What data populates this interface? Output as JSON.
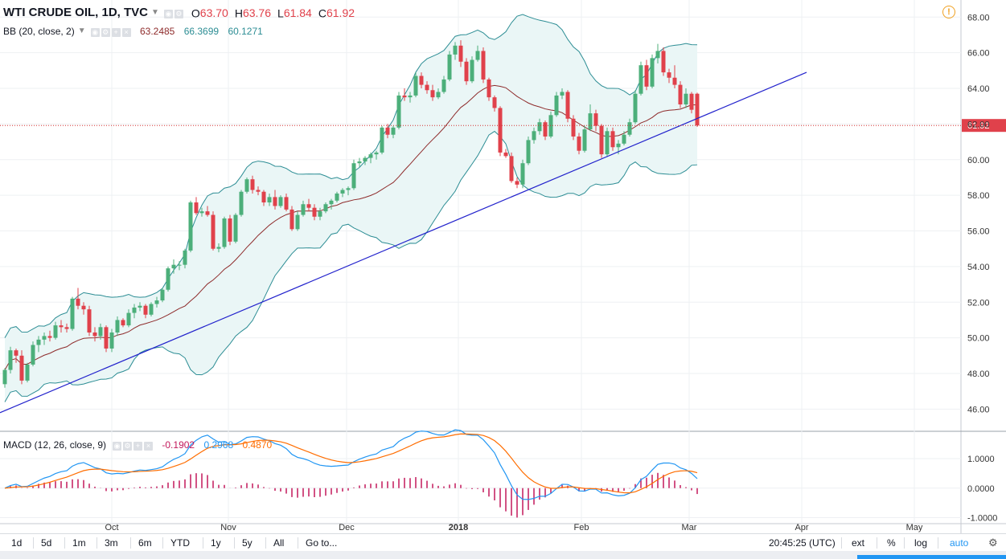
{
  "legend": {
    "symbol": "WTI CRUDE OIL, 1D, TVC",
    "ohlc": [
      {
        "k": "O",
        "v": "63.70"
      },
      {
        "k": "H",
        "v": "63.76"
      },
      {
        "k": "L",
        "v": "61.84"
      },
      {
        "k": "C",
        "v": "61.92"
      }
    ]
  },
  "bb": {
    "label": "BB (20, close, 2)",
    "basis": "63.2485",
    "upper": "66.3699",
    "lower": "60.1271"
  },
  "macd_legend": {
    "label": "MACD (12, 26, close, 9)",
    "histogram": "-0.1902",
    "macd": "0.2968",
    "signal": "0.4870"
  },
  "colors": {
    "up": "#4caf7a",
    "down": "#e0414b",
    "band": "#2c8d94",
    "band_fill": "#eaf6f6",
    "basis": "#8e2b2b",
    "trendline": "#2222cc",
    "macd": "#2196f3",
    "signal": "#ff6d00",
    "hist": "#c2185b",
    "price_line": "#d32f2f"
  },
  "price_badge": "61.92",
  "toolbar": {
    "ranges": [
      "1d",
      "5d",
      "1m",
      "3m",
      "6m",
      "YTD",
      "1y",
      "5y",
      "All"
    ],
    "goto": "Go to...",
    "time": "20:45:25 (UTC)",
    "ext": "ext",
    "percent": "%",
    "log": "log",
    "auto": "auto"
  },
  "chart_data": {
    "type": "candlestick",
    "x_ticks": [
      "Oct",
      "Nov",
      "Dec",
      "2018",
      "Feb",
      "Mar",
      "Apr",
      "May"
    ],
    "y_ticks": [
      "68.00",
      "66.00",
      "64.00",
      "62.00",
      "60.00",
      "58.00",
      "56.00",
      "54.00",
      "52.00",
      "50.00",
      "48.00",
      "46.00"
    ],
    "ylim": [
      44.8,
      68.6
    ],
    "macd_ticks": [
      "1.0000",
      "0.0000",
      "-1.0000"
    ],
    "macd_ylim": [
      -1.15,
      1.9
    ],
    "candles": [
      [
        47.4,
        48.3,
        47.2,
        48.2
      ],
      [
        48.2,
        49.5,
        48.0,
        49.3
      ],
      [
        49.3,
        49.4,
        48.6,
        49.0
      ],
      [
        49.0,
        49.3,
        47.4,
        47.6
      ],
      [
        47.6,
        48.6,
        47.5,
        48.5
      ],
      [
        48.5,
        49.8,
        48.4,
        49.6
      ],
      [
        49.6,
        50.1,
        49.2,
        49.9
      ],
      [
        49.9,
        50.3,
        49.6,
        50.1
      ],
      [
        50.1,
        50.4,
        49.8,
        50.0
      ],
      [
        50.0,
        50.9,
        49.9,
        50.7
      ],
      [
        50.7,
        51.0,
        50.3,
        50.6
      ],
      [
        50.6,
        50.8,
        50.3,
        50.5
      ],
      [
        50.5,
        52.3,
        50.4,
        52.2
      ],
      [
        52.2,
        52.8,
        51.6,
        51.8
      ],
      [
        51.8,
        52.0,
        51.3,
        51.6
      ],
      [
        51.6,
        51.8,
        50.1,
        50.3
      ],
      [
        50.3,
        50.6,
        49.8,
        50.1
      ],
      [
        50.1,
        50.8,
        49.9,
        50.6
      ],
      [
        50.6,
        50.7,
        49.2,
        49.4
      ],
      [
        49.4,
        50.5,
        49.2,
        50.3
      ],
      [
        50.3,
        51.2,
        50.1,
        51.0
      ],
      [
        51.0,
        51.1,
        50.6,
        50.7
      ],
      [
        50.7,
        51.6,
        50.6,
        51.4
      ],
      [
        51.4,
        51.9,
        51.1,
        51.7
      ],
      [
        51.7,
        52.0,
        51.5,
        51.8
      ],
      [
        51.8,
        51.9,
        51.1,
        51.3
      ],
      [
        51.3,
        52.0,
        51.2,
        51.9
      ],
      [
        51.9,
        52.3,
        51.7,
        52.1
      ],
      [
        52.1,
        52.8,
        52.0,
        52.7
      ],
      [
        52.7,
        54.0,
        52.6,
        53.9
      ],
      [
        53.9,
        54.4,
        53.6,
        54.1
      ],
      [
        54.1,
        54.3,
        53.8,
        54.1
      ],
      [
        54.1,
        55.0,
        53.9,
        54.9
      ],
      [
        54.9,
        57.7,
        54.8,
        57.6
      ],
      [
        57.6,
        57.9,
        56.9,
        57.0
      ],
      [
        57.0,
        57.3,
        56.8,
        57.1
      ],
      [
        57.1,
        57.4,
        56.8,
        56.9
      ],
      [
        56.9,
        57.1,
        54.9,
        55.0
      ],
      [
        55.0,
        55.3,
        54.8,
        55.1
      ],
      [
        55.1,
        56.8,
        55.0,
        56.7
      ],
      [
        56.7,
        56.9,
        55.2,
        55.4
      ],
      [
        55.4,
        57.0,
        55.3,
        56.9
      ],
      [
        56.9,
        58.3,
        56.8,
        58.2
      ],
      [
        58.2,
        59.0,
        58.1,
        58.9
      ],
      [
        58.9,
        59.1,
        58.1,
        58.3
      ],
      [
        58.3,
        58.5,
        58.0,
        58.2
      ],
      [
        58.2,
        58.3,
        57.4,
        57.6
      ],
      [
        57.6,
        58.1,
        57.4,
        57.9
      ],
      [
        57.9,
        58.3,
        57.2,
        57.4
      ],
      [
        57.4,
        58.0,
        57.3,
        57.9
      ],
      [
        57.9,
        58.1,
        57.1,
        57.2
      ],
      [
        57.2,
        57.4,
        56.0,
        56.1
      ],
      [
        56.1,
        57.1,
        56.0,
        56.9
      ],
      [
        56.9,
        57.7,
        56.8,
        57.5
      ],
      [
        57.5,
        57.8,
        57.1,
        57.3
      ],
      [
        57.3,
        57.5,
        56.6,
        56.8
      ],
      [
        56.8,
        57.3,
        56.6,
        57.1
      ],
      [
        57.1,
        57.6,
        57.0,
        57.5
      ],
      [
        57.5,
        57.8,
        57.2,
        57.7
      ],
      [
        57.7,
        58.2,
        57.6,
        58.1
      ],
      [
        58.1,
        58.4,
        57.9,
        58.3
      ],
      [
        58.3,
        58.5,
        58.0,
        58.4
      ],
      [
        58.4,
        60.0,
        58.3,
        59.8
      ],
      [
        59.8,
        60.1,
        59.6,
        59.9
      ],
      [
        59.9,
        60.2,
        59.7,
        60.1
      ],
      [
        60.1,
        60.4,
        59.8,
        60.3
      ],
      [
        60.3,
        60.5,
        60.0,
        60.4
      ],
      [
        60.4,
        61.9,
        60.3,
        61.8
      ],
      [
        61.8,
        62.0,
        61.2,
        61.4
      ],
      [
        61.4,
        61.9,
        61.2,
        61.8
      ],
      [
        61.8,
        63.8,
        61.7,
        63.6
      ],
      [
        63.6,
        64.0,
        63.3,
        63.5
      ],
      [
        63.5,
        63.8,
        63.2,
        63.6
      ],
      [
        63.6,
        64.9,
        63.5,
        64.7
      ],
      [
        64.7,
        64.9,
        64.0,
        64.2
      ],
      [
        64.2,
        64.4,
        63.7,
        63.9
      ],
      [
        63.9,
        64.2,
        63.3,
        63.5
      ],
      [
        63.5,
        64.0,
        63.4,
        63.8
      ],
      [
        63.8,
        64.7,
        63.7,
        64.5
      ],
      [
        64.5,
        66.1,
        64.4,
        65.9
      ],
      [
        65.9,
        66.6,
        65.6,
        66.4
      ],
      [
        66.4,
        66.7,
        65.2,
        65.5
      ],
      [
        65.5,
        65.7,
        64.2,
        64.4
      ],
      [
        64.4,
        65.8,
        64.3,
        65.6
      ],
      [
        65.6,
        66.4,
        65.5,
        66.1
      ],
      [
        66.1,
        66.3,
        64.3,
        64.5
      ],
      [
        64.5,
        64.6,
        63.3,
        63.5
      ],
      [
        63.5,
        63.6,
        62.7,
        62.9
      ],
      [
        62.9,
        63.0,
        60.2,
        60.4
      ],
      [
        60.4,
        60.6,
        60.1,
        60.2
      ],
      [
        60.2,
        60.4,
        58.7,
        58.8
      ],
      [
        58.8,
        59.0,
        58.4,
        58.6
      ],
      [
        58.6,
        60.0,
        58.4,
        59.8
      ],
      [
        59.8,
        61.3,
        59.7,
        61.1
      ],
      [
        61.1,
        61.8,
        60.9,
        61.6
      ],
      [
        61.6,
        62.3,
        61.4,
        62.1
      ],
      [
        62.1,
        62.2,
        61.1,
        61.3
      ],
      [
        61.3,
        62.7,
        61.2,
        62.5
      ],
      [
        62.5,
        63.8,
        62.4,
        63.6
      ],
      [
        63.6,
        64.0,
        63.4,
        63.8
      ],
      [
        63.8,
        63.9,
        62.1,
        62.3
      ],
      [
        62.3,
        62.5,
        61.1,
        61.3
      ],
      [
        61.3,
        61.5,
        60.3,
        60.5
      ],
      [
        60.5,
        61.9,
        60.4,
        61.7
      ],
      [
        61.7,
        63.1,
        61.6,
        62.6
      ],
      [
        62.6,
        62.8,
        61.6,
        61.9
      ],
      [
        61.9,
        62.0,
        60.1,
        60.3
      ],
      [
        60.3,
        61.8,
        60.2,
        61.6
      ],
      [
        61.6,
        61.8,
        60.5,
        60.7
      ],
      [
        60.7,
        61.1,
        60.3,
        60.9
      ],
      [
        60.9,
        61.6,
        60.8,
        61.4
      ],
      [
        61.4,
        62.3,
        61.3,
        62.1
      ],
      [
        62.1,
        63.9,
        62.0,
        63.7
      ],
      [
        63.7,
        65.5,
        63.6,
        65.3
      ],
      [
        65.3,
        65.6,
        63.9,
        64.1
      ],
      [
        64.1,
        65.9,
        64.0,
        65.7
      ],
      [
        65.7,
        66.5,
        65.4,
        66.1
      ],
      [
        66.1,
        66.3,
        64.7,
        64.9
      ],
      [
        64.9,
        65.1,
        64.3,
        64.6
      ],
      [
        64.6,
        65.3,
        64.0,
        64.2
      ],
      [
        64.2,
        64.4,
        62.9,
        63.1
      ],
      [
        63.1,
        64.0,
        62.9,
        63.7
      ],
      [
        63.7,
        63.8,
        62.6,
        62.8
      ],
      [
        63.7,
        63.76,
        61.84,
        61.92
      ]
    ],
    "trendline": {
      "start": [
        0,
        45.8
      ],
      "end": [
        143,
        64.9
      ]
    },
    "current_price": 61.92
  }
}
